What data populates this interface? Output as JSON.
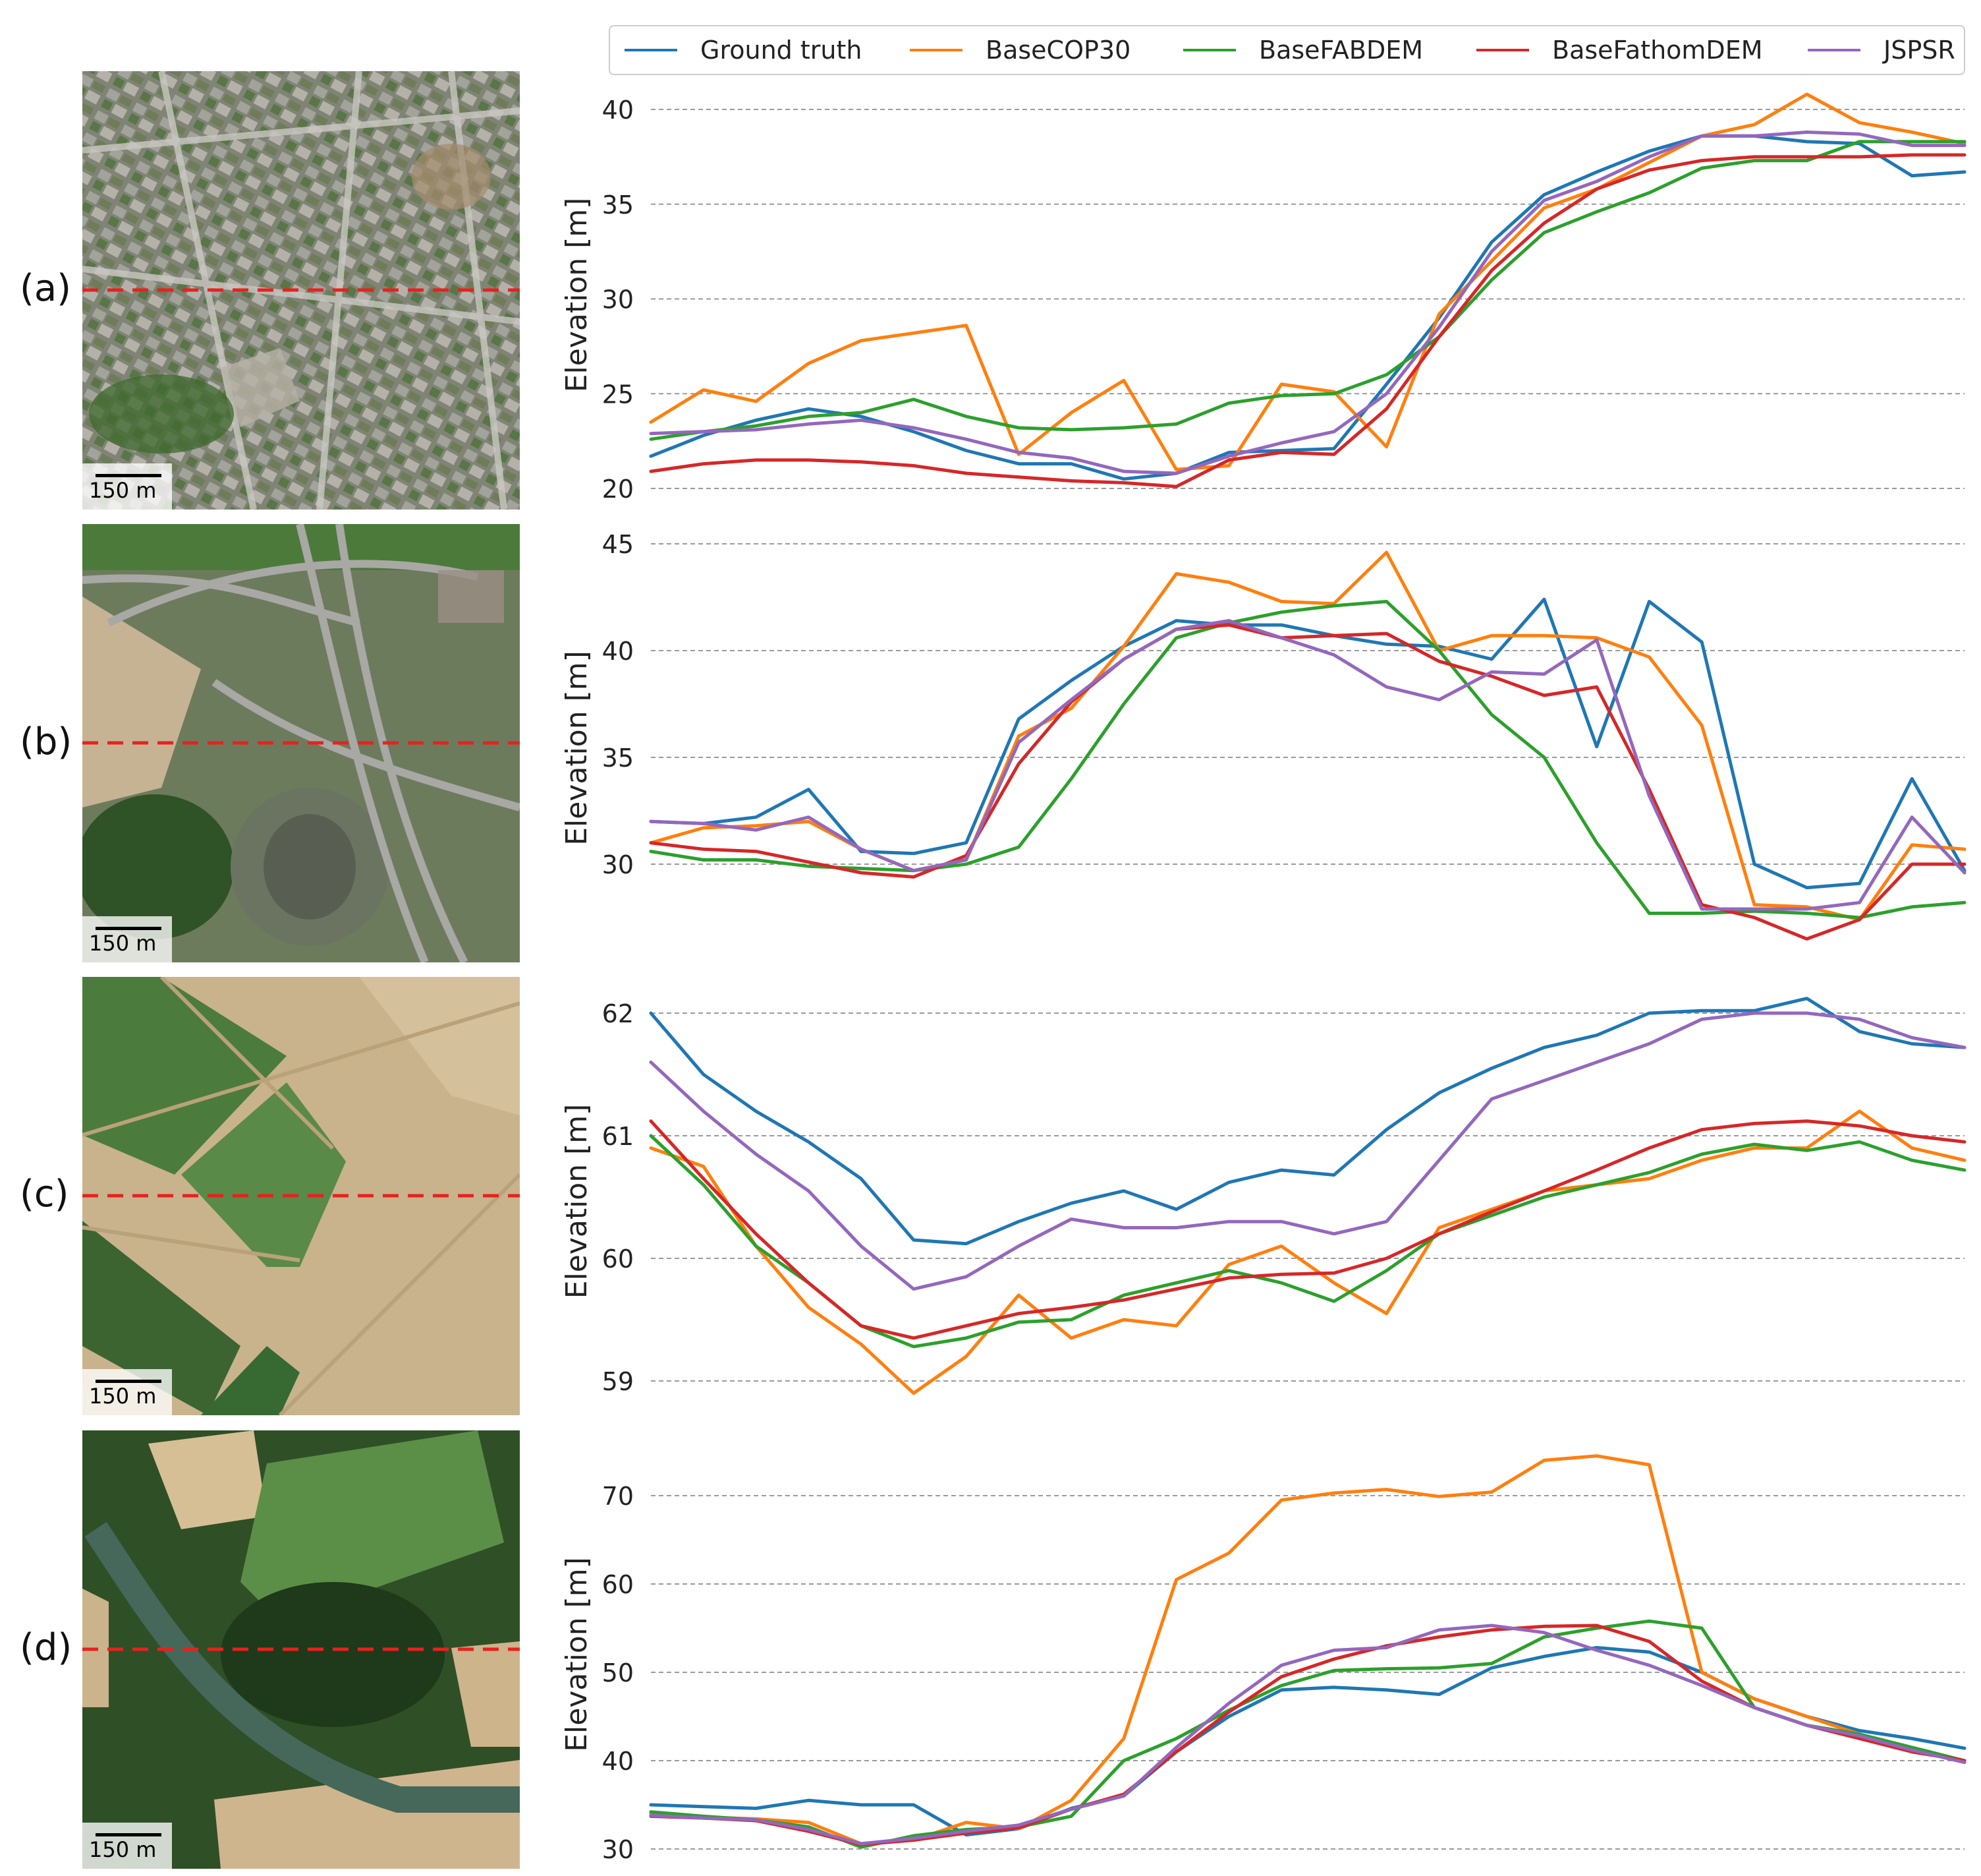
{
  "legend": {
    "entries": [
      {
        "name": "Ground truth",
        "color": "#1f77b4"
      },
      {
        "name": "BaseCOP30",
        "color": "#ff7f0e"
      },
      {
        "name": "BaseFABDEM",
        "color": "#2ca02c"
      },
      {
        "name": "BaseFathomDEM",
        "color": "#d62728"
      },
      {
        "name": "JSPSR",
        "color": "#9467bd"
      }
    ]
  },
  "panels": [
    {
      "label": "(a)",
      "scale": "150 m",
      "photo_style": "urban"
    },
    {
      "label": "(b)",
      "scale": "150 m",
      "photo_style": "interchange"
    },
    {
      "label": "(c)",
      "scale": "150 m",
      "photo_style": "fields"
    },
    {
      "label": "(d)",
      "scale": "150 m",
      "photo_style": "forest"
    }
  ],
  "colors": {
    "profile_line": "#e8211d",
    "grid": "#9a9a9a",
    "Ground truth": "#1f77b4",
    "BaseCOP30": "#ff7f0e",
    "BaseFABDEM": "#2ca02c",
    "BaseFathomDEM": "#d62728",
    "JSPSR": "#9467bd"
  },
  "chart_data": [
    {
      "type": "line",
      "panel": "(a)",
      "title": "",
      "xlabel": "",
      "ylabel": "Elevation [m]",
      "ylim": [
        19.5,
        41.5
      ],
      "yticks": [
        20,
        25,
        30,
        35,
        40
      ],
      "x": [
        0,
        0.04,
        0.08,
        0.12,
        0.16,
        0.2,
        0.24,
        0.28,
        0.32,
        0.36,
        0.4,
        0.44,
        0.48,
        0.52,
        0.56,
        0.6,
        0.64,
        0.68,
        0.72,
        0.76,
        0.8,
        0.84,
        0.88,
        0.92,
        0.96,
        1
      ],
      "series": [
        {
          "name": "Ground truth",
          "values": [
            21.7,
            22.8,
            23.6,
            24.2,
            23.8,
            23,
            22,
            21.3,
            21.3,
            20.5,
            20.8,
            21.9,
            22,
            22.1,
            25.5,
            29,
            33,
            35.5,
            36.7,
            37.8,
            38.6,
            38.6,
            38.3,
            38.2,
            36.5,
            36.7
          ]
        },
        {
          "name": "BaseCOP30",
          "values": [
            23.5,
            25.2,
            24.6,
            26.6,
            27.8,
            28.2,
            28.6,
            21.8,
            24,
            25.7,
            21,
            21.2,
            25.5,
            25.1,
            22.2,
            29.2,
            32,
            34.8,
            35.8,
            37.2,
            38.6,
            39.2,
            40.8,
            39.3,
            38.8,
            38.2
          ]
        },
        {
          "name": "BaseFABDEM",
          "values": [
            22.6,
            23,
            23.3,
            23.8,
            24,
            24.7,
            23.8,
            23.2,
            23.1,
            23.2,
            23.4,
            24.5,
            24.9,
            25,
            26,
            28,
            31,
            33.5,
            34.6,
            35.6,
            36.9,
            37.3,
            37.3,
            38.3,
            38.3,
            38.3
          ]
        },
        {
          "name": "BaseFathomDEM",
          "values": [
            20.9,
            21.3,
            21.5,
            21.5,
            21.4,
            21.2,
            20.8,
            20.6,
            20.4,
            20.3,
            20.1,
            21.5,
            21.9,
            21.8,
            24.2,
            28,
            31.5,
            34,
            35.8,
            36.8,
            37.3,
            37.5,
            37.5,
            37.5,
            37.6,
            37.6
          ]
        },
        {
          "name": "JSPSR",
          "values": [
            22.9,
            23,
            23.1,
            23.4,
            23.6,
            23.2,
            22.6,
            21.9,
            21.6,
            20.9,
            20.8,
            21.7,
            22.4,
            23,
            25,
            28.5,
            32.5,
            35.2,
            36.2,
            37.5,
            38.6,
            38.6,
            38.8,
            38.7,
            38.1,
            38.1
          ]
        }
      ]
    },
    {
      "type": "line",
      "panel": "(b)",
      "title": "",
      "xlabel": "",
      "ylabel": "Elevation [m]",
      "ylim": [
        28,
        45.5
      ],
      "yticks": [
        30,
        35,
        40,
        45
      ],
      "x": [
        0,
        0.04,
        0.08,
        0.12,
        0.16,
        0.2,
        0.24,
        0.28,
        0.32,
        0.36,
        0.4,
        0.44,
        0.48,
        0.52,
        0.56,
        0.6,
        0.64,
        0.68,
        0.72,
        0.76,
        0.8,
        0.84,
        0.88,
        0.92,
        0.96,
        1
      ],
      "series": [
        {
          "name": "Ground truth",
          "values": [
            32,
            31.9,
            32.2,
            33.5,
            30.6,
            30.5,
            31,
            36.8,
            38.6,
            40.2,
            41.4,
            41.2,
            41.2,
            40.7,
            40.3,
            40.2,
            39.6,
            42.4,
            35.5,
            42.3,
            40.4,
            30,
            28.9,
            29.1,
            34,
            29.7
          ]
        },
        {
          "name": "BaseCOP30",
          "values": [
            31,
            31.7,
            31.8,
            32,
            30.7,
            29.7,
            30.2,
            36,
            37.3,
            40.2,
            43.6,
            43.2,
            42.3,
            42.2,
            44.6,
            40,
            40.7,
            40.7,
            40.6,
            39.7,
            36.5,
            28.1,
            28,
            27.4,
            30.9,
            30.7
          ]
        },
        {
          "name": "BaseFABDEM",
          "values": [
            30.6,
            30.2,
            30.2,
            29.9,
            29.8,
            29.7,
            30,
            30.8,
            34,
            37.5,
            40.6,
            41.3,
            41.8,
            42.1,
            42.3,
            40,
            37,
            35,
            31,
            27.7,
            27.7,
            27.8,
            27.7,
            27.5,
            28,
            28.2
          ]
        },
        {
          "name": "BaseFathomDEM",
          "values": [
            31,
            30.7,
            30.6,
            30.1,
            29.6,
            29.4,
            30.4,
            34.7,
            37.6,
            39.6,
            41,
            41.2,
            40.6,
            40.7,
            40.8,
            39.5,
            38.8,
            37.9,
            38.3,
            33.5,
            28.1,
            27.5,
            26.5,
            27.4,
            30,
            30
          ]
        },
        {
          "name": "JSPSR",
          "values": [
            32,
            31.9,
            31.6,
            32.2,
            30.7,
            29.7,
            30.2,
            35.7,
            37.7,
            39.6,
            41,
            41.4,
            40.6,
            39.8,
            38.3,
            37.7,
            39,
            38.9,
            40.5,
            33.2,
            27.9,
            27.9,
            27.9,
            28.2,
            32.2,
            29.6
          ]
        }
      ]
    },
    {
      "type": "line",
      "panel": "(c)",
      "title": "",
      "xlabel": "",
      "ylabel": "Elevation [m]",
      "ylim": [
        58.8,
        62.1
      ],
      "yticks": [
        59,
        60,
        61,
        62
      ],
      "x": [
        0,
        0.04,
        0.08,
        0.12,
        0.16,
        0.2,
        0.24,
        0.28,
        0.32,
        0.36,
        0.4,
        0.44,
        0.48,
        0.52,
        0.56,
        0.6,
        0.64,
        0.68,
        0.72,
        0.76,
        0.8,
        0.84,
        0.88,
        0.92,
        0.96,
        1
      ],
      "series": [
        {
          "name": "Ground truth",
          "values": [
            62,
            61.5,
            61.2,
            60.95,
            60.65,
            60.15,
            60.12,
            60.3,
            60.45,
            60.55,
            60.4,
            60.62,
            60.72,
            60.68,
            61.05,
            61.35,
            61.55,
            61.72,
            61.82,
            62,
            62.02,
            62.02,
            62.12,
            61.85,
            61.75,
            61.72
          ]
        },
        {
          "name": "BaseCOP30",
          "values": [
            60.9,
            60.75,
            60.1,
            59.6,
            59.3,
            58.9,
            59.2,
            59.7,
            59.35,
            59.5,
            59.45,
            59.95,
            60.1,
            59.8,
            59.55,
            60.25,
            60.4,
            60.55,
            60.6,
            60.65,
            60.8,
            60.9,
            60.9,
            61.2,
            60.9,
            60.8
          ]
        },
        {
          "name": "BaseFABDEM",
          "values": [
            61,
            60.6,
            60.1,
            59.8,
            59.45,
            59.28,
            59.35,
            59.48,
            59.5,
            59.7,
            59.8,
            59.9,
            59.8,
            59.65,
            59.9,
            60.2,
            60.35,
            60.5,
            60.6,
            60.7,
            60.85,
            60.93,
            60.88,
            60.95,
            60.8,
            60.72
          ]
        },
        {
          "name": "BaseFathomDEM",
          "values": [
            61.12,
            60.65,
            60.2,
            59.8,
            59.45,
            59.35,
            59.45,
            59.55,
            59.6,
            59.66,
            59.75,
            59.84,
            59.87,
            59.88,
            60,
            60.2,
            60.38,
            60.55,
            60.72,
            60.9,
            61.05,
            61.1,
            61.12,
            61.08,
            61,
            60.95
          ]
        },
        {
          "name": "JSPSR",
          "values": [
            61.6,
            61.2,
            60.85,
            60.55,
            60.1,
            59.75,
            59.85,
            60.1,
            60.32,
            60.25,
            60.25,
            60.3,
            60.3,
            60.2,
            60.3,
            60.8,
            61.3,
            61.45,
            61.6,
            61.75,
            61.95,
            62,
            62,
            61.95,
            61.8,
            61.72
          ]
        }
      ]
    },
    {
      "type": "line",
      "panel": "(d)",
      "title": "",
      "xlabel": "",
      "ylabel": "Elevation [m]",
      "ylim": [
        29.5,
        75.5
      ],
      "yticks": [
        30,
        40,
        50,
        60,
        70
      ],
      "x": [
        0,
        0.04,
        0.08,
        0.12,
        0.16,
        0.2,
        0.24,
        0.28,
        0.32,
        0.36,
        0.4,
        0.44,
        0.48,
        0.52,
        0.56,
        0.6,
        0.64,
        0.68,
        0.72,
        0.76,
        0.8,
        0.84,
        0.88,
        0.92,
        0.96,
        1
      ],
      "series": [
        {
          "name": "Ground truth",
          "values": [
            35,
            34.8,
            34.6,
            35.5,
            35,
            35,
            31.6,
            32.3,
            34.6,
            36,
            41,
            45,
            48,
            48.3,
            48,
            47.5,
            50.5,
            51.8,
            52.8,
            52.3,
            50,
            47,
            45,
            43.4,
            42.5,
            41.4
          ]
        },
        {
          "name": "BaseCOP30",
          "values": [
            34,
            33.6,
            33.4,
            33,
            30.6,
            31,
            33,
            32.3,
            35.5,
            42.5,
            60.5,
            63.5,
            69.5,
            70.3,
            70.7,
            69.9,
            70.4,
            74,
            74.5,
            73.5,
            50,
            47,
            45,
            43,
            41,
            40
          ]
        },
        {
          "name": "BaseFABDEM",
          "values": [
            34.2,
            33.7,
            33.3,
            32.5,
            30.2,
            31.5,
            32.2,
            32.5,
            33.7,
            40,
            42.5,
            45.7,
            48.5,
            50.2,
            50.4,
            50.5,
            51,
            54,
            55,
            55.8,
            55,
            46,
            44,
            43,
            41.5,
            40
          ]
        },
        {
          "name": "BaseFathomDEM",
          "values": [
            33.7,
            33.5,
            33.2,
            32,
            30.5,
            31,
            31.8,
            32.4,
            34.5,
            36.2,
            41,
            45.5,
            49.5,
            51.5,
            53,
            54,
            54.8,
            55.2,
            55.3,
            53.5,
            49,
            46,
            44,
            42.5,
            41,
            40
          ]
        },
        {
          "name": "JSPSR",
          "values": [
            33.8,
            33.5,
            33.3,
            32.2,
            30.6,
            31.2,
            32,
            32.7,
            34.5,
            36,
            41.5,
            46.5,
            50.8,
            52.5,
            52.8,
            54.8,
            55.3,
            54.5,
            52.5,
            50.8,
            48.5,
            46,
            44,
            42.8,
            41.2,
            39.8
          ]
        }
      ]
    }
  ]
}
